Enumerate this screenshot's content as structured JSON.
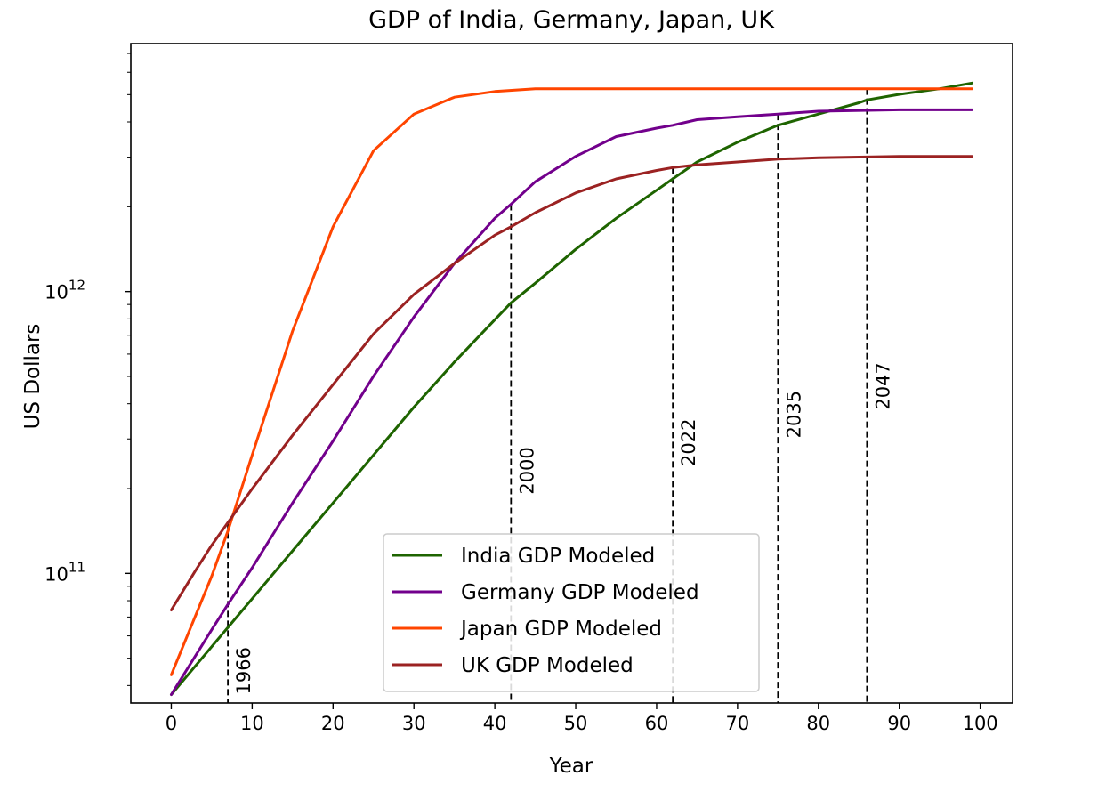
{
  "chart_data": {
    "type": "line",
    "title": "GDP of India, Germany, Japan, UK",
    "xlabel": "Year",
    "ylabel": "US Dollars",
    "xlim": [
      -5,
      104
    ],
    "ylim_log10": [
      10.54,
      12.88
    ],
    "yscale": "log",
    "x_ticks": [
      0,
      10,
      20,
      30,
      40,
      50,
      60,
      70,
      80,
      90,
      100
    ],
    "y_ticks": [
      {
        "value_log10": 11,
        "base": "10",
        "exp": "11"
      },
      {
        "value_log10": 12,
        "base": "10",
        "exp": "12"
      }
    ],
    "grid": false,
    "legend_position": "lower center",
    "series": [
      {
        "name": "India GDP Modeled",
        "color": "#1e6400",
        "x": [
          0,
          5,
          10,
          15,
          20,
          25,
          30,
          35,
          40,
          42,
          45,
          50,
          55,
          60,
          62,
          65,
          70,
          75,
          80,
          85,
          86,
          90,
          95,
          99
        ],
        "y_log10": [
          10.57,
          10.74,
          10.91,
          11.08,
          11.25,
          11.42,
          11.59,
          11.75,
          11.9,
          11.96,
          12.03,
          12.15,
          12.26,
          12.36,
          12.4,
          12.46,
          12.53,
          12.59,
          12.63,
          12.67,
          12.68,
          12.7,
          12.72,
          12.74
        ]
      },
      {
        "name": "Germany GDP Modeled",
        "color": "#72008c",
        "x": [
          0,
          5,
          7,
          10,
          15,
          20,
          25,
          30,
          35,
          40,
          42,
          45,
          50,
          55,
          60,
          62,
          65,
          70,
          75,
          80,
          90,
          99
        ],
        "y_log10": [
          10.57,
          10.8,
          10.89,
          11.02,
          11.25,
          11.47,
          11.7,
          11.91,
          12.1,
          12.26,
          12.31,
          12.39,
          12.48,
          12.55,
          12.58,
          12.59,
          12.61,
          12.62,
          12.63,
          12.64,
          12.645,
          12.645
        ]
      },
      {
        "name": "Japan GDP Modeled",
        "color": "#ff4500",
        "x": [
          0,
          5,
          7,
          10,
          15,
          20,
          25,
          30,
          35,
          40,
          45,
          50,
          55,
          60,
          70,
          80,
          90,
          99
        ],
        "y_log10": [
          10.64,
          10.99,
          11.15,
          11.42,
          11.86,
          12.23,
          12.5,
          12.63,
          12.69,
          12.71,
          12.72,
          12.72,
          12.72,
          12.72,
          12.72,
          12.72,
          12.72,
          12.72
        ]
      },
      {
        "name": "UK GDP Modeled",
        "color": "#9b2222",
        "x": [
          0,
          3,
          5,
          7,
          10,
          15,
          20,
          25,
          30,
          35,
          40,
          42,
          45,
          50,
          55,
          60,
          62,
          65,
          70,
          75,
          80,
          90,
          99
        ],
        "y_log10": [
          10.87,
          11.01,
          11.1,
          11.18,
          11.3,
          11.49,
          11.67,
          11.85,
          11.99,
          12.1,
          12.2,
          12.23,
          12.28,
          12.35,
          12.4,
          12.43,
          12.44,
          12.45,
          12.46,
          12.47,
          12.475,
          12.48,
          12.48
        ]
      }
    ],
    "annotations": [
      {
        "x": 7,
        "y_top_log10": 11.18,
        "label": "1966",
        "label_low_log10": 10.57
      },
      {
        "x": 42,
        "y_top_log10": 12.31,
        "label": "2000",
        "label_low_log10": 11.28
      },
      {
        "x": 62,
        "y_top_log10": 12.44,
        "label": "2022",
        "label_low_log10": 11.38
      },
      {
        "x": 75,
        "y_top_log10": 12.63,
        "label": "2035",
        "label_low_log10": 11.48
      },
      {
        "x": 86,
        "y_top_log10": 12.72,
        "label": "2047",
        "label_low_log10": 11.58
      }
    ]
  }
}
